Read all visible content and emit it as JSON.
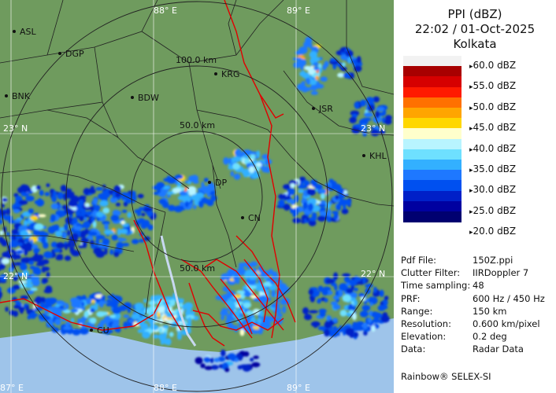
{
  "header": {
    "product": "PPI (dBZ)",
    "datetime": "22:02 / 01-Oct-2025",
    "station": "Kolkata"
  },
  "colors": {
    "land": "#6f9b5e",
    "sea": "#9ec4ea",
    "district_border": "#222222",
    "state_border": "#e00000",
    "range_ring": "#222222"
  },
  "legend": {
    "unit": "dBZ",
    "labels": [
      "60.0 dBZ",
      "55.0 dBZ",
      "50.0 dBZ",
      "45.0 dBZ",
      "40.0 dBZ",
      "35.0 dBZ",
      "30.0 dBZ",
      "25.0 dBZ",
      "20.0 dBZ"
    ],
    "bands": [
      {
        "min": 57.5,
        "color": "#f2f2f2"
      },
      {
        "min": 55.0,
        "color": "#a80000"
      },
      {
        "min": 52.5,
        "color": "#d60000"
      },
      {
        "min": 50.0,
        "color": "#ff1a00"
      },
      {
        "min": 47.5,
        "color": "#ff7000"
      },
      {
        "min": 45.0,
        "color": "#ffa500"
      },
      {
        "min": 42.5,
        "color": "#ffd700"
      },
      {
        "min": 40.0,
        "color": "#ffffcc"
      },
      {
        "min": 37.5,
        "color": "#b8f4ff"
      },
      {
        "min": 35.0,
        "color": "#6ee0ff"
      },
      {
        "min": 32.5,
        "color": "#33b0ff"
      },
      {
        "min": 30.0,
        "color": "#1e78ff"
      },
      {
        "min": 27.5,
        "color": "#0050f0"
      },
      {
        "min": 25.0,
        "color": "#0020c8"
      },
      {
        "min": 22.5,
        "color": "#0000a0"
      },
      {
        "min": 20.0,
        "color": "#000070"
      }
    ]
  },
  "info": {
    "rows": [
      {
        "key": "Pdf File:",
        "value": "150Z.ppi"
      },
      {
        "key": "Clutter Filter:",
        "value": "IIRDoppler 7"
      },
      {
        "key": "Time sampling:",
        "value": "48"
      },
      {
        "key": "PRF:",
        "value": "600 Hz / 450 Hz"
      },
      {
        "key": "Range:",
        "value": "150 km"
      },
      {
        "key": "Resolution:",
        "value": "0.600 km/pixel"
      },
      {
        "key": "Elevation:",
        "value": "0.2 deg"
      },
      {
        "key": "Data:",
        "value": "Radar Data"
      }
    ],
    "credit": "Rainbow® SELEX-SI"
  },
  "map": {
    "range_rings": [
      {
        "label": "50.0 km"
      },
      {
        "label": "100.0 km"
      },
      {
        "label": "50.0 km"
      }
    ],
    "longitude_labels_top": [
      "88° E",
      "89° E"
    ],
    "longitude_labels_bottom": [
      "87° E",
      "88° E",
      "89° E"
    ],
    "latitude_labels_left": [
      "23° N",
      "22° N"
    ],
    "latitude_labels_right": [
      "23° N",
      "22° N"
    ],
    "stations": [
      "ASL",
      "DGP",
      "BNK",
      "BDW",
      "KRG",
      "JSR",
      "KHL",
      "DP",
      "CN",
      "CU"
    ]
  }
}
